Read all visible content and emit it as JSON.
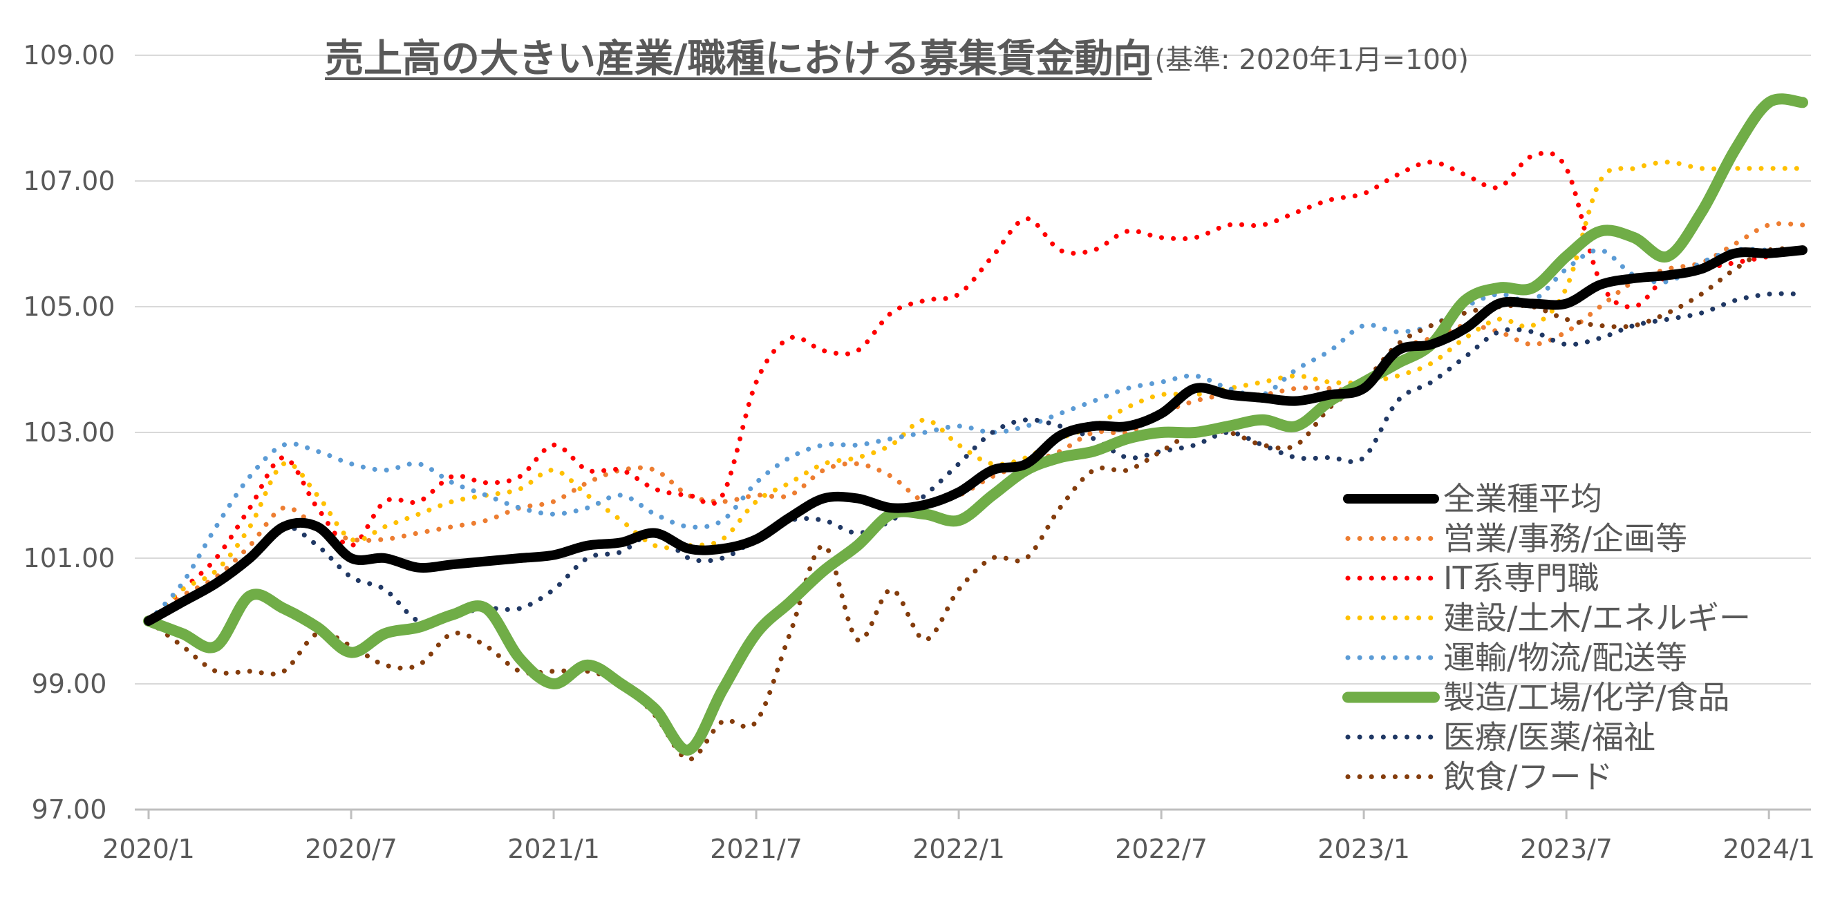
{
  "chart_data": {
    "type": "line",
    "title": "売上高の大きい産業/職種における募集賃金動向",
    "subtitle": "(基準: 2020年1月=100)",
    "xlabel": "",
    "ylabel": "",
    "ylim": [
      97,
      109
    ],
    "yticks": [
      "97.00",
      "99.00",
      "101.00",
      "103.00",
      "105.00",
      "107.00",
      "109.00"
    ],
    "ytick_values": [
      97,
      99,
      101,
      103,
      105,
      107,
      109
    ],
    "xticks": [
      "2020/1",
      "2020/7",
      "2021/1",
      "2021/7",
      "2022/1",
      "2022/7",
      "2023/1",
      "2023/7",
      "2024/1"
    ],
    "xtick_index": [
      0,
      6,
      12,
      18,
      24,
      30,
      36,
      42,
      48
    ],
    "grid": true,
    "legend_position": "right",
    "x": [
      "2020/1",
      "2020/2",
      "2020/3",
      "2020/4",
      "2020/5",
      "2020/6",
      "2020/7",
      "2020/8",
      "2020/9",
      "2020/10",
      "2020/11",
      "2020/12",
      "2021/1",
      "2021/2",
      "2021/3",
      "2021/4",
      "2021/5",
      "2021/6",
      "2021/7",
      "2021/8",
      "2021/9",
      "2021/10",
      "2021/11",
      "2021/12",
      "2022/1",
      "2022/2",
      "2022/3",
      "2022/4",
      "2022/5",
      "2022/6",
      "2022/7",
      "2022/8",
      "2022/9",
      "2022/10",
      "2022/11",
      "2022/12",
      "2023/1",
      "2023/2",
      "2023/3",
      "2023/4",
      "2023/5",
      "2023/6",
      "2023/7",
      "2023/8",
      "2023/9",
      "2023/10",
      "2023/11",
      "2023/12",
      "2024/1",
      "2024/2"
    ],
    "series": [
      {
        "name": "全業種平均",
        "color": "#000000",
        "style": "solid",
        "width": 14,
        "values": [
          100.0,
          100.3,
          100.6,
          101.0,
          101.5,
          101.5,
          101.0,
          101.0,
          100.85,
          100.9,
          100.95,
          101.0,
          101.05,
          101.2,
          101.25,
          101.4,
          101.15,
          101.15,
          101.3,
          101.65,
          101.95,
          101.95,
          101.8,
          101.85,
          102.05,
          102.4,
          102.5,
          102.95,
          103.1,
          103.1,
          103.3,
          103.7,
          103.6,
          103.55,
          103.5,
          103.6,
          103.7,
          104.3,
          104.4,
          104.65,
          105.05,
          105.05,
          105.05,
          105.35,
          105.45,
          105.5,
          105.6,
          105.85,
          105.85,
          105.9
        ]
      },
      {
        "name": "営業/事務/企画等",
        "color": "#ED7D31",
        "style": "dotted",
        "width": 7,
        "values": [
          100.0,
          100.4,
          100.7,
          101.2,
          101.8,
          101.5,
          101.3,
          101.3,
          101.4,
          101.5,
          101.6,
          101.8,
          101.9,
          102.2,
          102.4,
          102.4,
          102.0,
          101.9,
          102.0,
          102.0,
          102.4,
          102.5,
          102.3,
          101.9,
          102.0,
          102.3,
          102.5,
          102.7,
          103.0,
          103.0,
          103.3,
          103.5,
          103.6,
          103.6,
          103.7,
          103.7,
          103.7,
          104.3,
          104.5,
          104.7,
          104.6,
          104.4,
          104.6,
          105.0,
          105.4,
          105.6,
          105.7,
          106.0,
          106.3,
          106.3
        ]
      },
      {
        "name": "IT系専門職",
        "color": "#FF0000",
        "style": "dotted",
        "width": 7,
        "values": [
          100.0,
          100.5,
          101.0,
          101.8,
          102.6,
          101.8,
          101.2,
          101.9,
          101.9,
          102.3,
          102.2,
          102.3,
          102.8,
          102.4,
          102.4,
          102.1,
          102.0,
          102.0,
          103.8,
          104.5,
          104.3,
          104.3,
          104.9,
          105.1,
          105.2,
          105.8,
          106.4,
          105.9,
          105.9,
          106.2,
          106.1,
          106.1,
          106.3,
          106.3,
          106.5,
          106.7,
          106.8,
          107.1,
          107.3,
          107.1,
          106.9,
          107.4,
          107.2,
          105.4,
          105.0,
          105.5,
          105.6,
          105.7,
          105.8,
          105.9
        ]
      },
      {
        "name": "建設/土木/エネルギー",
        "color": "#FFC000",
        "style": "dotted",
        "width": 7,
        "values": [
          100.0,
          100.5,
          100.8,
          101.5,
          102.5,
          102.0,
          101.3,
          101.5,
          101.7,
          101.9,
          102.0,
          102.1,
          102.4,
          102.0,
          101.6,
          101.2,
          101.2,
          101.3,
          101.9,
          102.2,
          102.5,
          102.6,
          102.8,
          103.2,
          102.8,
          102.5,
          102.6,
          102.9,
          103.1,
          103.4,
          103.6,
          103.6,
          103.7,
          103.8,
          103.9,
          103.8,
          103.8,
          103.9,
          104.1,
          104.5,
          104.8,
          104.7,
          105.3,
          107.0,
          107.2,
          107.3,
          107.2,
          107.2,
          107.2,
          107.2
        ]
      },
      {
        "name": "運輸/物流/配送等",
        "color": "#5B9BD5",
        "style": "dotted",
        "width": 7,
        "values": [
          100.0,
          100.6,
          101.5,
          102.3,
          102.8,
          102.7,
          102.5,
          102.4,
          102.5,
          102.2,
          102.0,
          101.8,
          101.7,
          101.8,
          102.0,
          101.7,
          101.5,
          101.6,
          102.2,
          102.6,
          102.8,
          102.8,
          102.9,
          103.0,
          103.1,
          103.0,
          103.1,
          103.3,
          103.5,
          103.7,
          103.8,
          103.9,
          103.7,
          103.6,
          104.0,
          104.3,
          104.7,
          104.6,
          104.7,
          105.0,
          105.2,
          105.1,
          105.6,
          105.9,
          105.5,
          105.4,
          105.7,
          105.9,
          105.9,
          105.9
        ]
      },
      {
        "name": "製造/工場/化学/食品",
        "color": "#70AD47",
        "style": "solid",
        "width": 16,
        "values": [
          100.0,
          99.8,
          99.6,
          100.4,
          100.2,
          99.9,
          99.5,
          99.8,
          99.9,
          100.1,
          100.2,
          99.4,
          99.0,
          99.3,
          99.0,
          98.6,
          97.95,
          98.9,
          99.8,
          100.3,
          100.8,
          101.2,
          101.7,
          101.7,
          101.6,
          102.0,
          102.4,
          102.6,
          102.7,
          102.9,
          103.0,
          103.0,
          103.1,
          103.2,
          103.1,
          103.5,
          103.8,
          104.1,
          104.4,
          105.1,
          105.3,
          105.3,
          105.8,
          106.2,
          106.1,
          105.8,
          106.5,
          107.5,
          108.25,
          108.25
        ]
      },
      {
        "name": "医療/医薬/福祉",
        "color": "#203864",
        "style": "dotted",
        "width": 7,
        "values": [
          100.0,
          100.3,
          100.6,
          101.0,
          101.5,
          101.2,
          100.7,
          100.5,
          100.0,
          100.1,
          100.2,
          100.2,
          100.5,
          101.0,
          101.1,
          101.4,
          101.0,
          101.0,
          101.3,
          101.6,
          101.6,
          101.4,
          101.6,
          102.0,
          102.5,
          103.0,
          103.2,
          103.1,
          102.9,
          102.6,
          102.7,
          102.8,
          103.0,
          102.8,
          102.6,
          102.6,
          102.6,
          103.5,
          103.8,
          104.2,
          104.6,
          104.6,
          104.4,
          104.5,
          104.7,
          104.8,
          104.9,
          105.1,
          105.2,
          105.2
        ]
      },
      {
        "name": "飲食/フード",
        "color": "#843C0C",
        "style": "dotted",
        "width": 7,
        "values": [
          100.0,
          99.6,
          99.2,
          99.2,
          99.2,
          99.8,
          99.6,
          99.3,
          99.3,
          99.8,
          99.6,
          99.2,
          99.2,
          99.2,
          99.0,
          98.5,
          97.8,
          98.4,
          98.4,
          99.8,
          101.2,
          99.7,
          100.5,
          99.7,
          100.5,
          101.0,
          101.0,
          101.8,
          102.4,
          102.4,
          102.7,
          103.0,
          103.0,
          102.8,
          102.8,
          103.4,
          103.8,
          104.4,
          104.7,
          104.9,
          105.0,
          105.0,
          104.8,
          104.7,
          104.7,
          104.9,
          105.2,
          105.6,
          105.9,
          105.9
        ]
      }
    ]
  }
}
